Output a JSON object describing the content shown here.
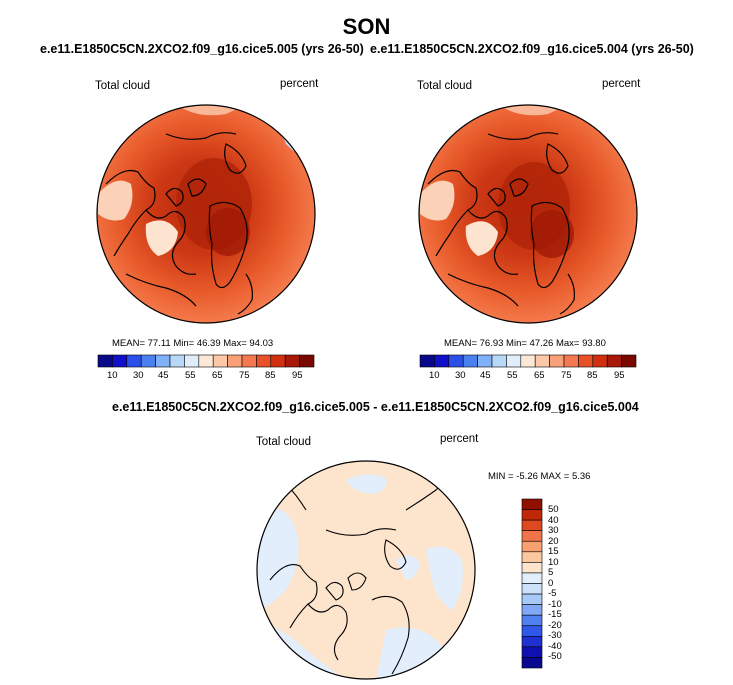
{
  "season": "SON",
  "case_a": "e.e11.E1850C5CN.2XCO2.f09_g16.cice5.005 (yrs 26-50)",
  "case_b": "e.e11.E1850C5CN.2XCO2.f09_g16.cice5.004 (yrs 26-50)",
  "diff_title": "e.e11.E1850C5CN.2XCO2.f09_g16.cice5.005 - e.e11.E1850C5CN.2XCO2.f09_g16.cice5.004",
  "colors": {
    "abs": [
      "#08088a",
      "#1010c8",
      "#2a50e8",
      "#4a80f0",
      "#80b0f8",
      "#b8d8f8",
      "#e0eefc",
      "#fde8d8",
      "#fcc8a8",
      "#f8a078",
      "#f47850",
      "#e85028",
      "#d03010",
      "#a81808",
      "#780800"
    ],
    "diff": [
      "#080890",
      "#1010b0",
      "#2030d0",
      "#3058e8",
      "#5080f0",
      "#80a8f4",
      "#a8c8f8",
      "#cce0fa",
      "#e2eefc",
      "#fde4cc",
      "#fcc8a0",
      "#f8a070",
      "#f07448",
      "#e04820",
      "#c02808",
      "#901000"
    ]
  },
  "chart_data": [
    {
      "type": "polar-map",
      "name": "case-a",
      "variable": "Total cloud",
      "units": "percent",
      "mean": "77.11",
      "min": "46.39",
      "max": "94.03",
      "stats_text": "MEAN=  77.11  Min=  46.39  Max=  94.03",
      "levels": [
        "10",
        "30",
        "45",
        "55",
        "65",
        "75",
        "85",
        "95"
      ]
    },
    {
      "type": "polar-map",
      "name": "case-b",
      "variable": "Total cloud",
      "units": "percent",
      "mean": "76.93",
      "min": "47.26",
      "max": "93.80",
      "stats_text": "MEAN=  76.93  Min=  47.26  Max=  93.80",
      "levels": [
        "10",
        "30",
        "45",
        "55",
        "65",
        "75",
        "85",
        "95"
      ]
    },
    {
      "type": "polar-map",
      "name": "difference",
      "variable": "Total cloud",
      "units": "percent",
      "min": "-5.26",
      "max": "5.36",
      "stats_text": "MIN =  -5.26 MAX =  5.36",
      "levels": [
        "50",
        "40",
        "30",
        "20",
        "15",
        "10",
        "5",
        "0",
        "-5",
        "-10",
        "-15",
        "-20",
        "-30",
        "-40",
        "-50"
      ]
    }
  ]
}
